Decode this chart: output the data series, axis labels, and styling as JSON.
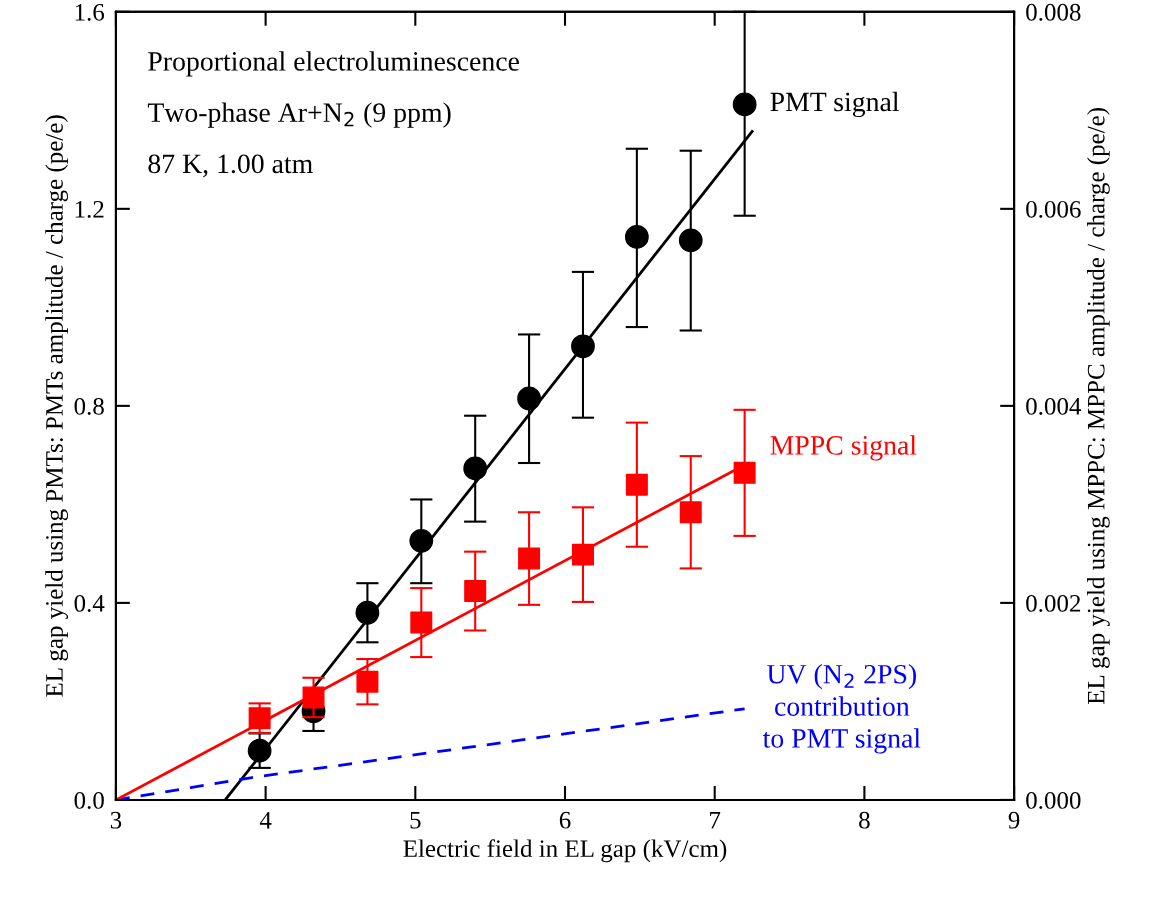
{
  "chart_data": {
    "type": "scatter",
    "xlabel": "Electric field in EL gap (kV/cm)",
    "ylabel": "EL gap yield using PMTs: PMTs amplitude / charge (pe/e)",
    "y2label": "EL gap yield using MPPC: MPPC amplitude / charge (pe/e)",
    "annotations": [
      "Proportional electroluminescence",
      "Two-phase Ar+N$_{2}$ (9 ppm)",
      "87 K, 1.00 atm"
    ],
    "x": [
      3.96,
      4.32,
      4.68,
      5.04,
      5.4,
      5.76,
      6.12,
      6.48,
      6.84,
      7.2
    ],
    "xlim": [
      3,
      9
    ],
    "xticks": [
      3,
      4,
      5,
      6,
      7,
      8,
      9
    ],
    "ylim": [
      0,
      1.6
    ],
    "yticks": [
      {
        "value": 0,
        "label": "0.0"
      },
      {
        "value": 0.4,
        "label": "0.4"
      },
      {
        "value": 0.8,
        "label": "0.8"
      },
      {
        "value": 1.2,
        "label": "1.2"
      },
      {
        "value": 1.6,
        "label": "1.6"
      }
    ],
    "y2lim": [
      0,
      0.008
    ],
    "y2ticks": [
      {
        "value": 0,
        "label": "0.000"
      },
      {
        "value": 0.002,
        "label": "0.002"
      },
      {
        "value": 0.004,
        "label": "0.004"
      },
      {
        "value": 0.006,
        "label": "0.006"
      },
      {
        "value": 0.008,
        "label": "0.008"
      }
    ],
    "grid": false,
    "legend": false,
    "series": [
      {
        "name": "PMT signal",
        "marker": "circle",
        "color": "#000000",
        "values": [
          0.1,
          0.18,
          0.38,
          0.526,
          0.673,
          0.815,
          0.921,
          1.143,
          1.136,
          1.412
        ],
        "errors": [
          [
            0.065,
            0.135
          ],
          [
            0.14,
            0.18
          ],
          [
            0.32,
            0.44
          ],
          [
            0.44,
            0.61
          ],
          [
            0.565,
            0.78
          ],
          [
            0.684,
            0.945
          ],
          [
            0.776,
            1.072
          ],
          [
            0.96,
            1.322
          ],
          [
            0.953,
            1.318
          ],
          [
            1.186,
            1.6
          ]
        ]
      },
      {
        "type": "line",
        "line_style": "solid",
        "color": "#000000",
        "x": [
          3.73,
          7.25
        ],
        "values": [
          0,
          1.357
        ]
      },
      {
        "name": "MPPC signal",
        "marker": "square",
        "axis": "y2",
        "color": "#ff0000",
        "values": [
          0.00083,
          0.00104,
          0.0012,
          0.0018,
          0.00212,
          0.00245,
          0.00249,
          0.0032,
          0.00292,
          0.00332
        ],
        "errors": [
          0.00015,
          0.0002,
          0.00023,
          0.00035,
          0.0004,
          0.00047,
          0.00048,
          0.00063,
          0.00057,
          0.00064
        ]
      },
      {
        "type": "line",
        "line_style": "solid",
        "axis": "y2",
        "color": "#ff0000",
        "x": [
          3,
          7.2
        ],
        "values": [
          0,
          0.0034
        ]
      },
      {
        "name": "UV (N$_{2}$ 2PS)\ncontribution\nto PMT signal",
        "type": "line",
        "line_style": "dashed",
        "color": "#0000ff",
        "x": [
          3,
          3.5,
          3.9,
          7.2
        ],
        "values": [
          0,
          0.025,
          0.045,
          0.185
        ]
      }
    ]
  }
}
